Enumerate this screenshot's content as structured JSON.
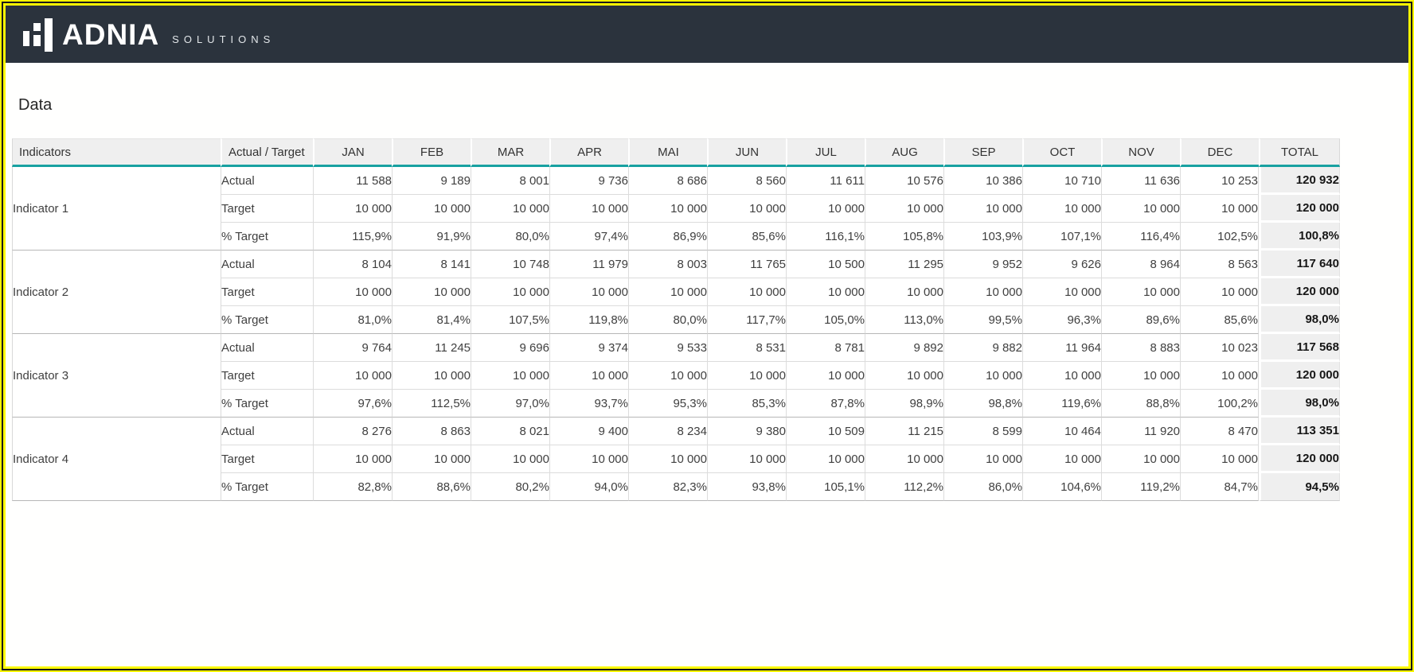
{
  "frame": {
    "yellow": "#fbf800",
    "black": "#1a1a1a"
  },
  "topbar": {
    "bg": "#2b333d",
    "brand": "ADNIA",
    "brand_suffix": "SOLUTIONS",
    "logo_icon": "bar-chart-logo"
  },
  "page": {
    "title": "Data"
  },
  "table": {
    "accent_teal": "#18a1a1",
    "header_bg": "#efefef",
    "total_bg": "#efefef",
    "columns": {
      "indicators": "Indicators",
      "actual_target": "Actual / Target",
      "months": [
        "JAN",
        "FEB",
        "MAR",
        "APR",
        "MAI",
        "JUN",
        "JUL",
        "AUG",
        "SEP",
        "OCT",
        "NOV",
        "DEC"
      ],
      "total": "TOTAL"
    },
    "indicators": [
      {
        "name": "Indicator 1",
        "rows": [
          {
            "label": "Actual",
            "values": [
              "11 588",
              "9 189",
              "8 001",
              "9 736",
              "8 686",
              "8 560",
              "11 611",
              "10 576",
              "10 386",
              "10 710",
              "11 636",
              "10 253"
            ],
            "total": "120 932"
          },
          {
            "label": "Target",
            "values": [
              "10 000",
              "10 000",
              "10 000",
              "10 000",
              "10 000",
              "10 000",
              "10 000",
              "10 000",
              "10 000",
              "10 000",
              "10 000",
              "10 000"
            ],
            "total": "120 000"
          },
          {
            "label": "% Target",
            "values": [
              "115,9%",
              "91,9%",
              "80,0%",
              "97,4%",
              "86,9%",
              "85,6%",
              "116,1%",
              "105,8%",
              "103,9%",
              "107,1%",
              "116,4%",
              "102,5%"
            ],
            "total": "100,8%"
          }
        ]
      },
      {
        "name": "Indicator 2",
        "rows": [
          {
            "label": "Actual",
            "values": [
              "8 104",
              "8 141",
              "10 748",
              "11 979",
              "8 003",
              "11 765",
              "10 500",
              "11 295",
              "9 952",
              "9 626",
              "8 964",
              "8 563"
            ],
            "total": "117 640"
          },
          {
            "label": "Target",
            "values": [
              "10 000",
              "10 000",
              "10 000",
              "10 000",
              "10 000",
              "10 000",
              "10 000",
              "10 000",
              "10 000",
              "10 000",
              "10 000",
              "10 000"
            ],
            "total": "120 000"
          },
          {
            "label": "% Target",
            "values": [
              "81,0%",
              "81,4%",
              "107,5%",
              "119,8%",
              "80,0%",
              "117,7%",
              "105,0%",
              "113,0%",
              "99,5%",
              "96,3%",
              "89,6%",
              "85,6%"
            ],
            "total": "98,0%"
          }
        ]
      },
      {
        "name": "Indicator 3",
        "rows": [
          {
            "label": "Actual",
            "values": [
              "9 764",
              "11 245",
              "9 696",
              "9 374",
              "9 533",
              "8 531",
              "8 781",
              "9 892",
              "9 882",
              "11 964",
              "8 883",
              "10 023"
            ],
            "total": "117 568"
          },
          {
            "label": "Target",
            "values": [
              "10 000",
              "10 000",
              "10 000",
              "10 000",
              "10 000",
              "10 000",
              "10 000",
              "10 000",
              "10 000",
              "10 000",
              "10 000",
              "10 000"
            ],
            "total": "120 000"
          },
          {
            "label": "% Target",
            "values": [
              "97,6%",
              "112,5%",
              "97,0%",
              "93,7%",
              "95,3%",
              "85,3%",
              "87,8%",
              "98,9%",
              "98,8%",
              "119,6%",
              "88,8%",
              "100,2%"
            ],
            "total": "98,0%"
          }
        ]
      },
      {
        "name": "Indicator 4",
        "rows": [
          {
            "label": "Actual",
            "values": [
              "8 276",
              "8 863",
              "8 021",
              "9 400",
              "8 234",
              "9 380",
              "10 509",
              "11 215",
              "8 599",
              "10 464",
              "11 920",
              "8 470"
            ],
            "total": "113 351"
          },
          {
            "label": "Target",
            "values": [
              "10 000",
              "10 000",
              "10 000",
              "10 000",
              "10 000",
              "10 000",
              "10 000",
              "10 000",
              "10 000",
              "10 000",
              "10 000",
              "10 000"
            ],
            "total": "120 000"
          },
          {
            "label": "% Target",
            "values": [
              "82,8%",
              "88,6%",
              "80,2%",
              "94,0%",
              "82,3%",
              "93,8%",
              "105,1%",
              "112,2%",
              "86,0%",
              "104,6%",
              "119,2%",
              "84,7%"
            ],
            "total": "94,5%"
          }
        ]
      }
    ]
  }
}
